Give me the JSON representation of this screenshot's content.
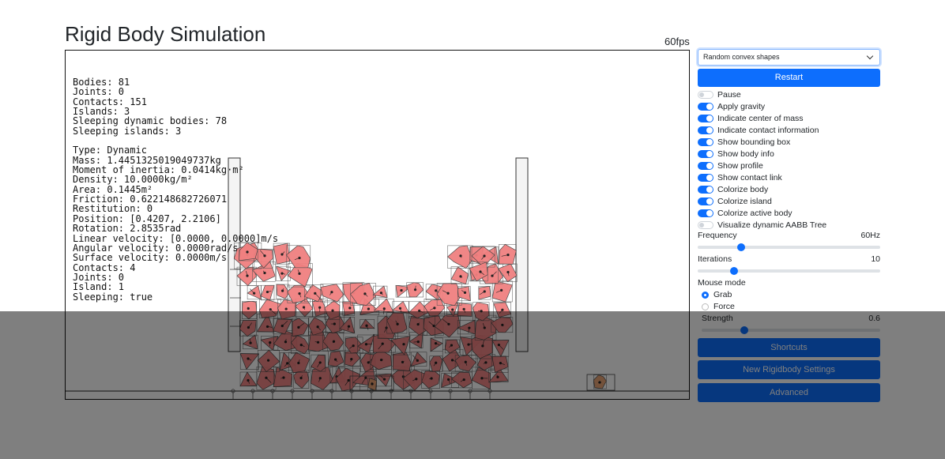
{
  "page": {
    "title": "Rigid Body Simulation",
    "fps": "60fps"
  },
  "info": {
    "lines": [
      "Bodies: 81",
      "Joints: 0",
      "Contacts: 151",
      "Islands: 3",
      "Sleeping dynamic bodies: 78",
      "Sleeping islands: 3",
      "",
      "Type: Dynamic",
      "Mass: 1.4451325019049737kg",
      "Moment of inertia: 0.0414kg·m²",
      "Density: 10.0000kg/m²",
      "Area: 0.1445m²",
      "Friction: 0.622148682726071",
      "Restitution: 0",
      "Position: [0.4207, 2.2106]",
      "Rotation: 2.8535rad",
      "Linear velocity: [0.0000, 0.0000]m/s",
      "Angular velocity: 0.0000rad/s",
      "Surface velocity: 0.0000m/s",
      "Contacts: 4",
      "Joints: 0",
      "Island: 1",
      "Sleeping: true"
    ]
  },
  "controls": {
    "scene_select": {
      "value": "Random convex shapes",
      "icon": "chevron-down-icon"
    },
    "restart_label": "Restart",
    "toggles": [
      {
        "label": "Pause",
        "on": false
      },
      {
        "label": "Apply gravity",
        "on": true
      },
      {
        "label": "Indicate center of mass",
        "on": true
      },
      {
        "label": "Indicate contact information",
        "on": true
      },
      {
        "label": "Show bounding box",
        "on": true
      },
      {
        "label": "Show body info",
        "on": true
      },
      {
        "label": "Show profile",
        "on": true
      },
      {
        "label": "Show contact link",
        "on": true
      },
      {
        "label": "Colorize body",
        "on": true
      },
      {
        "label": "Colorize island",
        "on": true
      },
      {
        "label": "Colorize active body",
        "on": true
      },
      {
        "label": "Visualize dynamic AABB Tree",
        "on": false
      }
    ],
    "frequency": {
      "label": "Frequency",
      "value": "60Hz",
      "fraction": 0.24
    },
    "iterations": {
      "label": "Iterations",
      "value": "10",
      "fraction": 0.2
    },
    "mouse_mode": {
      "label": "Mouse mode",
      "options": [
        {
          "label": "Grab",
          "selected": true
        },
        {
          "label": "Force",
          "selected": false
        }
      ]
    },
    "strength": {
      "label": "Strength",
      "value": "0.6",
      "fraction": 0.24
    },
    "buttons": {
      "shortcuts": "Shortcuts",
      "new_rigidbody": "New Rigidbody Settings",
      "advanced": "Advanced"
    }
  },
  "colors": {
    "accent": "#0d6efd",
    "body_fill": "#f08080",
    "body_fill_alt": "#e8a070"
  }
}
